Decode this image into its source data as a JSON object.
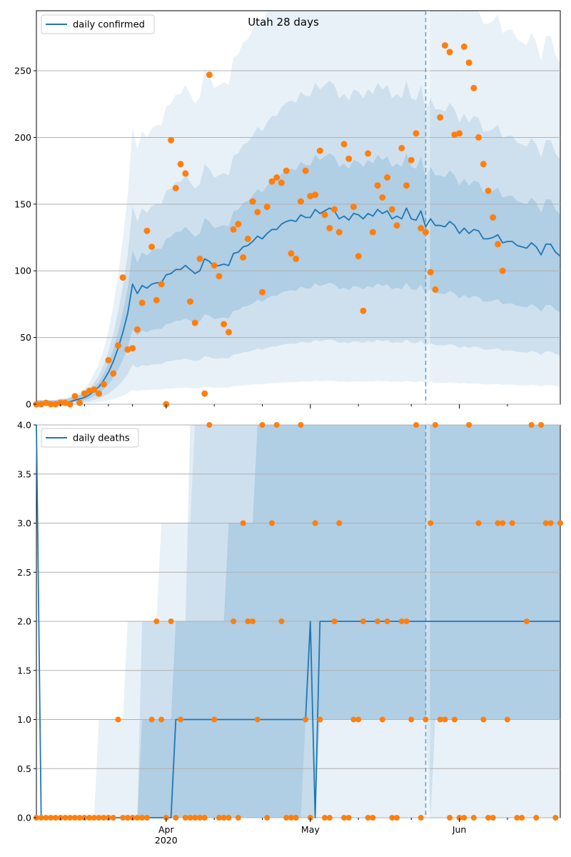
{
  "chart_data": [
    {
      "type": "line",
      "title": "Utah 28 days",
      "xlabel": "",
      "ylabel": "",
      "ylim": [
        0,
        295
      ],
      "yticks": [
        0,
        50,
        100,
        150,
        200,
        250
      ],
      "grid": "horizontal",
      "legend": {
        "entries": [
          "daily confirmed"
        ],
        "placement": "top-left"
      },
      "vline_day": 81,
      "series": [
        {
          "name": "daily confirmed",
          "kind": "line",
          "color": "#1f77b4",
          "x": [
            0,
            1,
            2,
            3,
            4,
            5,
            6,
            7,
            8,
            9,
            10,
            11,
            12,
            13,
            14,
            15,
            16,
            17,
            18,
            19,
            20,
            21,
            22,
            23,
            24,
            25,
            26,
            27,
            28,
            29,
            30,
            31,
            32,
            33,
            34,
            35,
            36,
            37,
            38,
            39,
            40,
            41,
            42,
            43,
            44,
            45,
            46,
            47,
            48,
            49,
            50,
            51,
            52,
            53,
            54,
            55,
            56,
            57,
            58,
            59,
            60,
            61,
            62,
            63,
            64,
            65,
            66,
            67,
            68,
            69,
            70,
            71,
            72,
            73,
            74,
            75,
            76,
            77,
            78,
            79,
            80,
            81,
            82,
            83,
            84,
            85,
            86,
            87,
            88,
            89,
            90,
            91,
            92,
            93,
            94,
            95,
            96,
            97,
            98,
            99,
            100,
            101,
            102,
            103,
            104,
            105,
            106,
            107,
            108,
            109
          ],
          "y": [
            0,
            0,
            0,
            0,
            0,
            1,
            1,
            2,
            3,
            4,
            5,
            7,
            10,
            13,
            18,
            24,
            32,
            42,
            54,
            68,
            90,
            83,
            89,
            87,
            90,
            91,
            91,
            97,
            98,
            101,
            101,
            104,
            101,
            98,
            100,
            109,
            107,
            103,
            104,
            105,
            104,
            113,
            114,
            118,
            119,
            122,
            126,
            124,
            128,
            131,
            131,
            135,
            137,
            138,
            137,
            142,
            140,
            140,
            146,
            143,
            145,
            147,
            145,
            139,
            141,
            138,
            143,
            142,
            139,
            143,
            141,
            146,
            143,
            145,
            139,
            141,
            139,
            147,
            139,
            138,
            145,
            133,
            139,
            134,
            134,
            133,
            137,
            134,
            128,
            132,
            128,
            131,
            130,
            124,
            124,
            125,
            127,
            121,
            122,
            122,
            119,
            118,
            117,
            121,
            118,
            112,
            120,
            120,
            114,
            111
          ]
        },
        {
          "name": "",
          "kind": "scatter",
          "color": "#ff7f0e",
          "x": [
            0,
            1,
            2,
            3,
            4,
            5,
            6,
            7,
            8,
            9,
            10,
            11,
            12,
            13,
            14,
            15,
            16,
            17,
            18,
            19,
            20,
            21,
            22,
            23,
            24,
            25,
            26,
            27,
            28,
            29,
            30,
            31,
            32,
            33,
            34,
            35,
            36,
            37,
            38,
            39,
            40,
            41,
            42,
            43,
            44,
            45,
            46,
            47,
            48,
            49,
            50,
            51,
            52,
            53,
            54,
            55,
            56,
            57,
            58,
            59,
            60,
            61,
            62,
            63,
            64,
            65,
            66,
            67,
            68,
            69,
            70,
            71,
            72,
            73,
            74,
            75,
            76,
            77,
            78,
            79,
            80,
            81,
            82,
            83,
            84,
            85,
            86,
            87,
            88,
            89,
            90,
            91,
            92,
            93,
            94,
            95,
            96,
            97
          ],
          "y": [
            0,
            0,
            1,
            0,
            0,
            1,
            1,
            0,
            6,
            1,
            8,
            10,
            11,
            8,
            15,
            33,
            23,
            44,
            95,
            41,
            42,
            56,
            76,
            130,
            118,
            78,
            90,
            0,
            198,
            162,
            180,
            173,
            77,
            61,
            109,
            8,
            247,
            104,
            96,
            60,
            54,
            131,
            135,
            110,
            124,
            152,
            144,
            84,
            148,
            167,
            170,
            166,
            175,
            113,
            109,
            152,
            175,
            156,
            157,
            190,
            142,
            132,
            146,
            129,
            195,
            184,
            148,
            111,
            70,
            188,
            129,
            164,
            155,
            170,
            146,
            134,
            192,
            164,
            183,
            203,
            132,
            129,
            99,
            86,
            215,
            269,
            264,
            202,
            203,
            268,
            256,
            237,
            200,
            180,
            160,
            140,
            120,
            100
          ]
        }
      ]
    },
    {
      "type": "line",
      "title": "",
      "xlabel": "",
      "ylabel": "",
      "ylim": [
        0,
        4
      ],
      "yticks": [
        "0.0",
        "0.5",
        "1.0",
        "1.5",
        "2.0",
        "2.5",
        "3.0",
        "3.5",
        "4.0"
      ],
      "xticks": [
        "Apr\n2020",
        "May",
        "Jun"
      ],
      "grid": "horizontal",
      "legend": {
        "entries": [
          "daily deaths"
        ],
        "placement": "top-left"
      },
      "vline_day": 81,
      "series": [
        {
          "name": "daily deaths",
          "kind": "line",
          "color": "#1f77b4",
          "x": [
            0,
            1,
            28,
            29,
            56,
            57,
            58,
            59,
            109
          ],
          "y": [
            4,
            0,
            0,
            1,
            1,
            2,
            0,
            2,
            2
          ]
        },
        {
          "name": "",
          "kind": "scatter",
          "color": "#ff7f0e",
          "x": [
            0,
            1,
            2,
            3,
            4,
            5,
            6,
            7,
            8,
            9,
            10,
            11,
            12,
            13,
            14,
            15,
            16,
            17,
            18,
            19,
            20,
            21,
            22,
            23,
            24,
            25,
            26,
            27,
            28,
            29,
            30,
            31,
            32,
            33,
            34,
            35,
            36,
            37,
            38,
            39,
            40,
            41,
            42,
            43,
            44,
            45,
            46,
            47,
            48,
            49,
            50,
            51,
            52,
            53,
            54,
            55,
            56,
            57,
            58,
            59,
            60,
            61,
            62,
            63,
            64,
            65,
            66,
            67,
            68,
            69,
            70,
            71,
            72,
            73,
            74,
            75,
            76,
            77,
            78,
            79,
            80,
            81,
            82,
            83,
            84,
            85,
            86,
            87,
            88,
            89,
            90,
            91,
            92,
            93,
            94,
            95,
            96,
            97,
            98,
            99,
            100,
            101,
            102,
            103,
            104,
            105,
            106,
            107,
            108,
            109
          ],
          "y": [
            0,
            0,
            0,
            0,
            0,
            0,
            0,
            0,
            0,
            0,
            0,
            0,
            0,
            0,
            0,
            0,
            0,
            1,
            0,
            0,
            0,
            0,
            0,
            0,
            1,
            2,
            1,
            0,
            2,
            0,
            1,
            0,
            0,
            0,
            0,
            0,
            4,
            1,
            0,
            0,
            0,
            2,
            0,
            3,
            2,
            2,
            1,
            4,
            0,
            3,
            4,
            2,
            0,
            0,
            0,
            4,
            1,
            0,
            3,
            1,
            0,
            0,
            2,
            3,
            0,
            0,
            1,
            1,
            2,
            0,
            0,
            2,
            1,
            2,
            0,
            0,
            2,
            2,
            1,
            4,
            0,
            1,
            3,
            4,
            1,
            1,
            0,
            1,
            0,
            0,
            4,
            0,
            3,
            1,
            0,
            0,
            3,
            3,
            1,
            3,
            0,
            0,
            2,
            4,
            0,
            4,
            3,
            3,
            0,
            3
          ]
        }
      ]
    }
  ]
}
